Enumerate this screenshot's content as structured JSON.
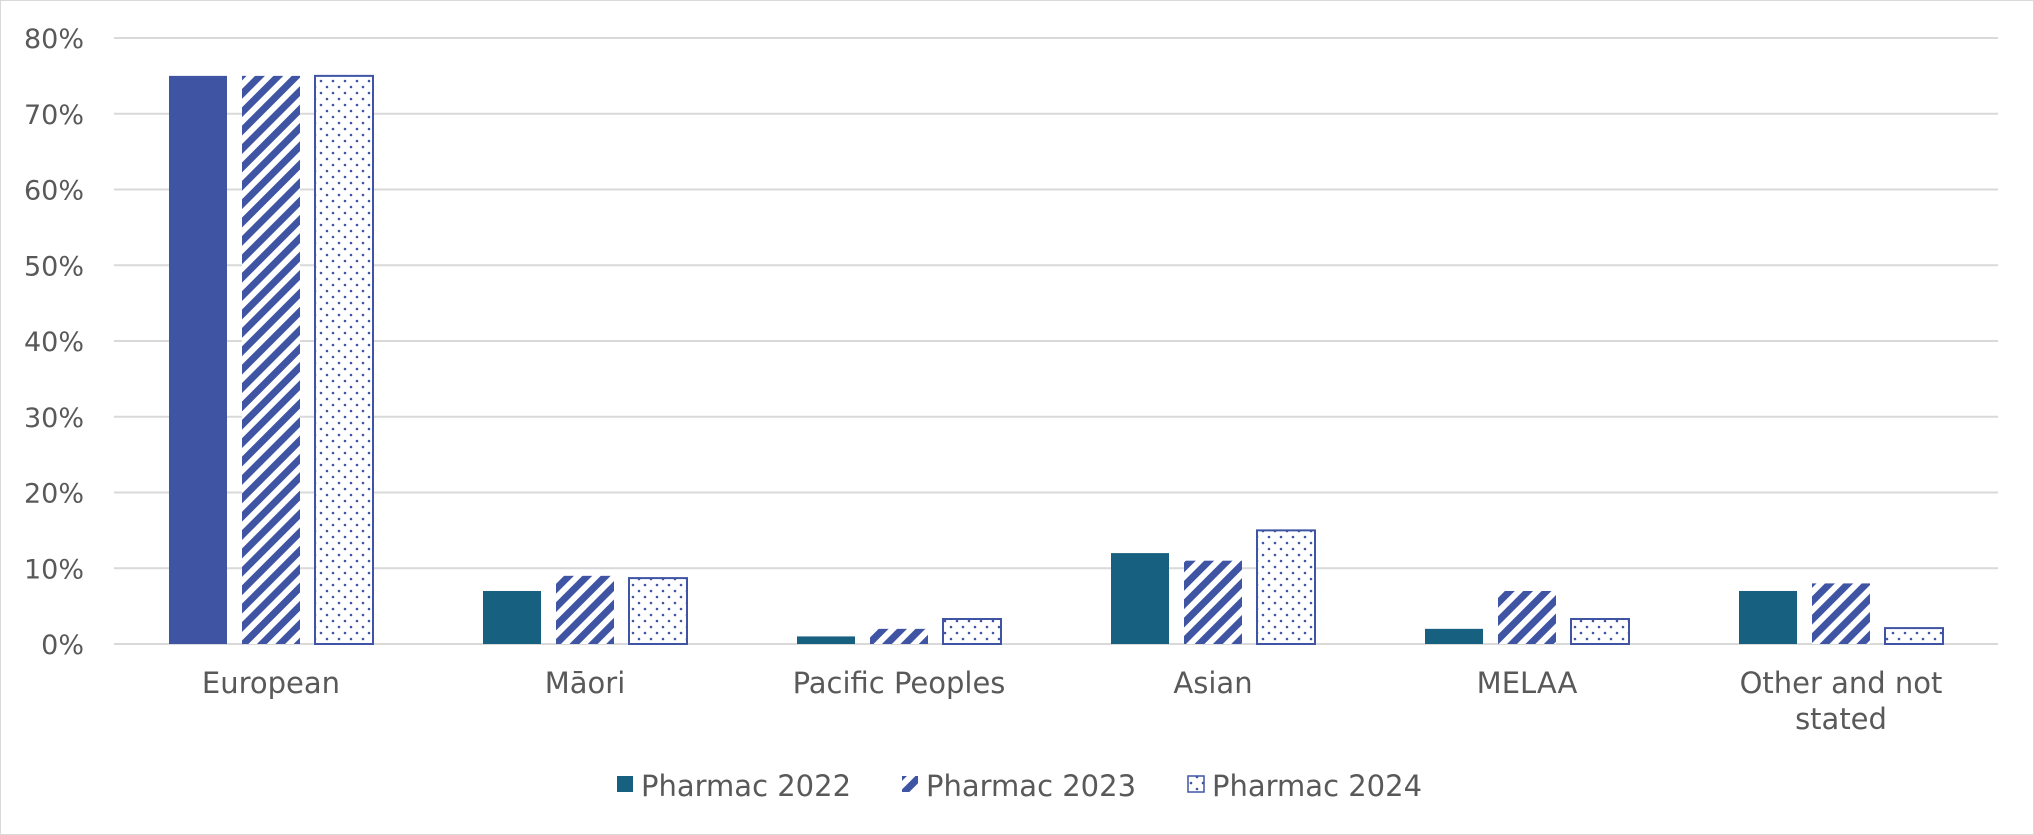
{
  "chart_data": {
    "type": "bar",
    "title": "",
    "xlabel": "",
    "ylabel": "",
    "categories": [
      "European",
      "Māori",
      "Pacific Peoples",
      "Asian",
      "MELAA",
      "Other and not stated"
    ],
    "series": [
      {
        "name": "Pharmac 2022",
        "values": [
          75,
          7,
          1,
          12,
          2,
          7
        ]
      },
      {
        "name": "Pharmac 2023",
        "values": [
          75,
          9,
          2,
          11,
          7,
          8
        ]
      },
      {
        "name": "Pharmac 2024",
        "values": [
          75,
          8.7,
          3.3,
          15,
          3.3,
          2.1
        ]
      }
    ],
    "ylim": [
      0,
      80
    ],
    "ytick_step": 10,
    "ytick_format": "%",
    "grid": true,
    "legend_position": "bottom-center",
    "colors": {
      "pharmac_2022": "#17607f",
      "pharmac_2022_european": "#3f55a4",
      "pharmac_2023": "#3f55a4",
      "pharmac_2024": "#3f55a4"
    }
  }
}
